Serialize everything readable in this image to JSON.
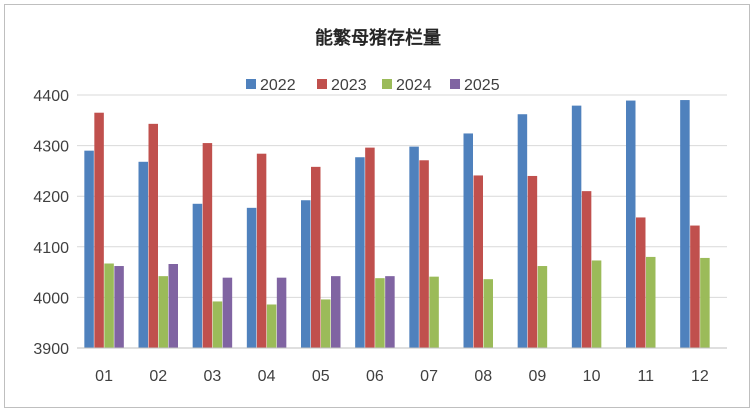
{
  "chart_data": {
    "type": "bar",
    "title": "能繁母猪存栏量",
    "xlabel": "",
    "ylabel": "",
    "categories": [
      "01",
      "02",
      "03",
      "04",
      "05",
      "06",
      "07",
      "08",
      "09",
      "10",
      "11",
      "12"
    ],
    "ylim": [
      3900,
      4400
    ],
    "yticks": [
      3900,
      4000,
      4100,
      4200,
      4300,
      4400
    ],
    "grid": true,
    "legend_position": "top",
    "series": [
      {
        "name": "2022",
        "color": "#4F81BD",
        "values": [
          4290,
          4268,
          4185,
          4177,
          4192,
          4277,
          4298,
          4324,
          4362,
          4379,
          4389,
          4390
        ]
      },
      {
        "name": "2023",
        "color": "#C0504D",
        "values": [
          4365,
          4343,
          4305,
          4284,
          4258,
          4296,
          4271,
          4241,
          4240,
          4210,
          4158,
          4142
        ]
      },
      {
        "name": "2024",
        "color": "#9BBB59",
        "values": [
          4067,
          4042,
          3992,
          3986,
          3996,
          4038,
          4041,
          4036,
          4062,
          4073,
          4080,
          4078
        ]
      },
      {
        "name": "2025",
        "color": "#8064A2",
        "values": [
          4062,
          4066,
          4039,
          4039,
          4042,
          4042,
          null,
          null,
          null,
          null,
          null,
          null
        ]
      }
    ]
  }
}
